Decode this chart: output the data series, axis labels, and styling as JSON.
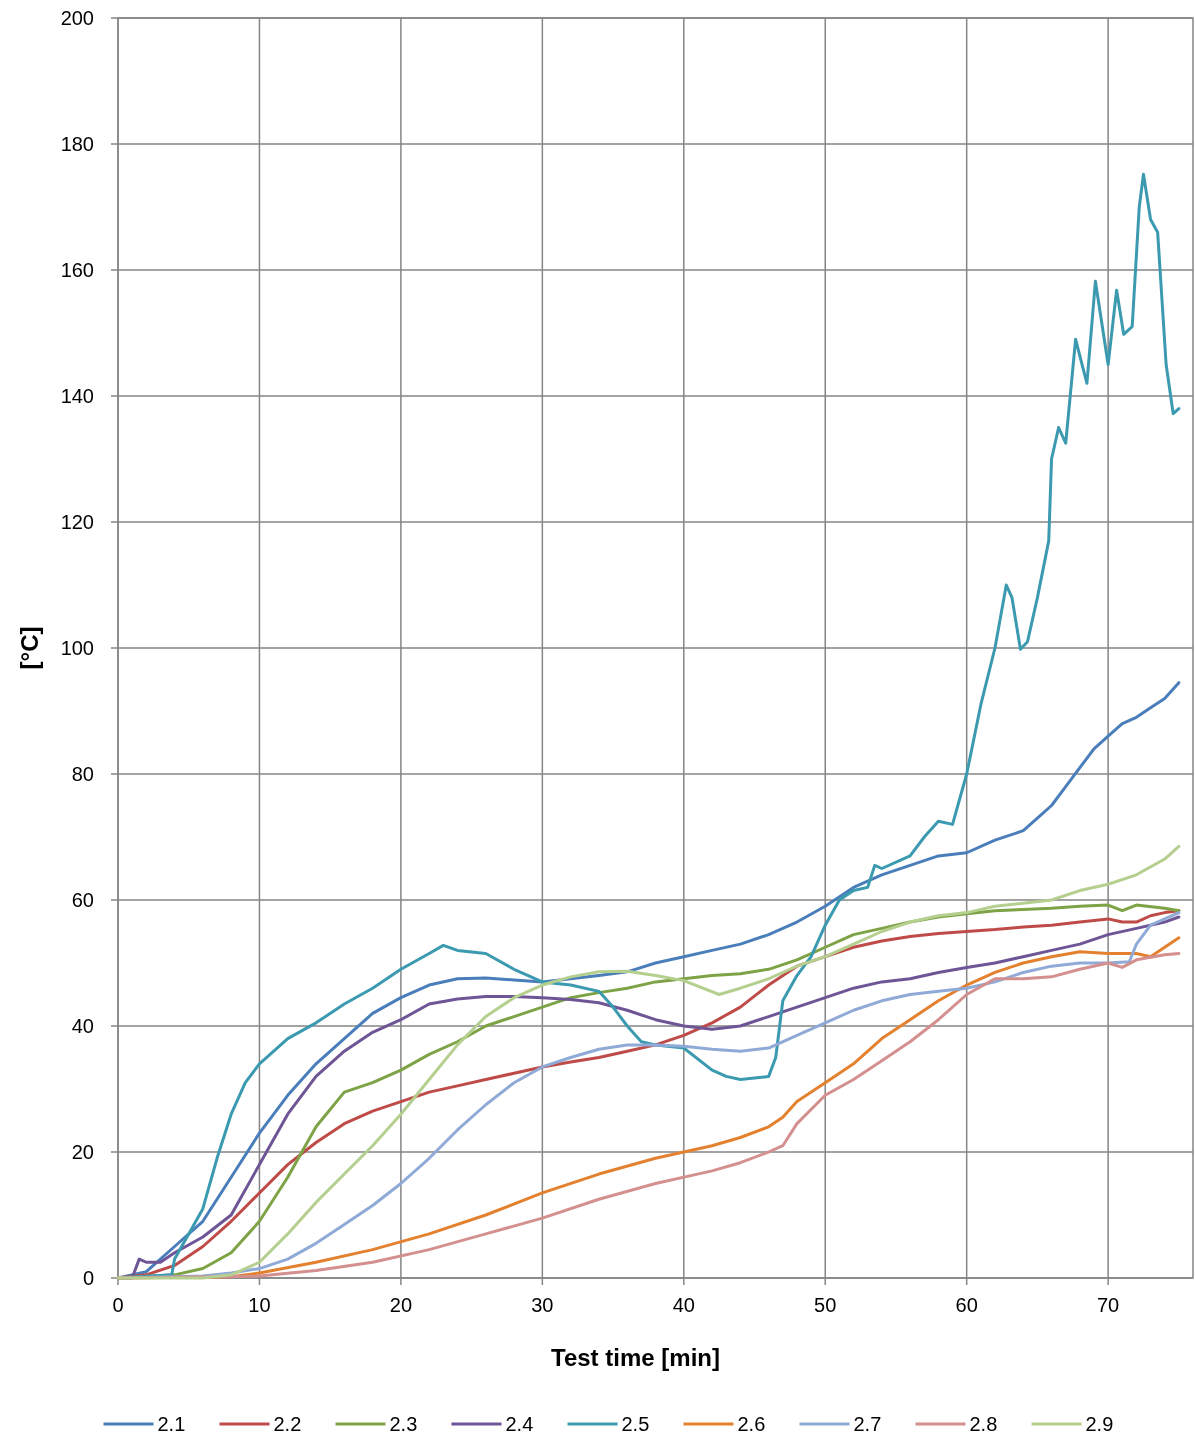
{
  "chart_data": {
    "type": "line",
    "xlabel": "Test time [min]",
    "ylabel": "[°C]",
    "xlim": [
      0,
      76
    ],
    "xticks": [
      0,
      10,
      20,
      30,
      40,
      50,
      60,
      70
    ],
    "ylim": [
      0,
      200
    ],
    "yticks": [
      0,
      20,
      40,
      60,
      80,
      100,
      120,
      140,
      160,
      180,
      200
    ],
    "grid": true,
    "legend": "bottom",
    "line_style": "solid",
    "series": [
      {
        "name": "2.1",
        "color": "#4a7ebb",
        "x": [
          0,
          2,
          4,
          6,
          8,
          10,
          12,
          14,
          16,
          18,
          20,
          22,
          24,
          26,
          28,
          30,
          32,
          34,
          36,
          38,
          40,
          42,
          44,
          46,
          48,
          50,
          52,
          54,
          56,
          58,
          60,
          62,
          64,
          65,
          66,
          67,
          68,
          69,
          70,
          71,
          72,
          73,
          74,
          75
        ],
        "values": [
          0,
          1,
          5,
          9,
          16,
          23,
          29,
          34,
          38,
          42,
          44.5,
          46.5,
          47.5,
          47.6,
          47.3,
          47,
          47.5,
          48,
          48.6,
          50,
          51,
          52,
          53,
          54.5,
          56.5,
          59,
          62,
          64,
          65.5,
          67,
          67.5,
          69.5,
          71,
          73,
          75,
          78,
          81,
          84,
          86,
          88,
          89,
          90.5,
          92,
          94.5
        ]
      },
      {
        "name": "2.2",
        "color": "#be4b48",
        "x": [
          0,
          2,
          4,
          6,
          8,
          10,
          12,
          14,
          16,
          18,
          20,
          22,
          24,
          26,
          28,
          30,
          32,
          34,
          36,
          38,
          40,
          42,
          44,
          46,
          48,
          50,
          52,
          54,
          56,
          58,
          60,
          62,
          64,
          66,
          68,
          70,
          71,
          72,
          73,
          74,
          75
        ],
        "values": [
          0,
          0.5,
          2,
          5,
          9,
          13.5,
          18,
          21.5,
          24.5,
          26.5,
          28,
          29.5,
          30.5,
          31.5,
          32.5,
          33.5,
          34.3,
          35,
          36,
          37,
          38.5,
          40.5,
          43,
          46.5,
          49.5,
          51,
          52.5,
          53.5,
          54.2,
          54.7,
          55,
          55.3,
          55.7,
          56,
          56.5,
          57,
          56.5,
          56.5,
          57.5,
          58,
          58.3
        ]
      },
      {
        "name": "2.3",
        "color": "#7ea346",
        "x": [
          0,
          4,
          6,
          8,
          10,
          12,
          14,
          16,
          18,
          20,
          22,
          24,
          26,
          28,
          30,
          32,
          34,
          36,
          38,
          40,
          42,
          44,
          46,
          48,
          50,
          52,
          54,
          56,
          58,
          60,
          62,
          64,
          66,
          68,
          70,
          71,
          72,
          74,
          75
        ],
        "values": [
          0,
          0.5,
          1.5,
          4,
          9,
          16,
          24,
          29.5,
          31,
          33,
          35.5,
          37.5,
          40,
          41.5,
          43,
          44.5,
          45.3,
          46,
          47,
          47.5,
          48,
          48.3,
          49,
          50.5,
          52.5,
          54.5,
          55.5,
          56.5,
          57.3,
          57.8,
          58.3,
          58.5,
          58.7,
          59,
          59.2,
          58.3,
          59.2,
          58.7,
          58.3
        ]
      },
      {
        "name": "2.4",
        "color": "#6e5596",
        "x": [
          0,
          1,
          1.5,
          2,
          3,
          4,
          6,
          8,
          10,
          12,
          14,
          16,
          18,
          20,
          22,
          24,
          26,
          28,
          30,
          32,
          34,
          36,
          38,
          40,
          42,
          44,
          46,
          48,
          50,
          52,
          54,
          56,
          58,
          60,
          62,
          64,
          66,
          68,
          70,
          72,
          74,
          75
        ],
        "values": [
          0,
          0,
          3,
          2.5,
          2.5,
          4,
          6.5,
          10,
          18,
          26,
          32,
          36,
          39,
          41,
          43.5,
          44.3,
          44.7,
          44.7,
          44.5,
          44.2,
          43.7,
          42.5,
          41,
          40,
          39.5,
          40,
          41.5,
          43,
          44.5,
          46,
          47,
          47.5,
          48.5,
          49.3,
          50,
          51,
          52,
          53,
          54.5,
          55.5,
          56.5,
          57.3
        ]
      },
      {
        "name": "2.5",
        "color": "#3b9ab0",
        "x": [
          0,
          3.8,
          4,
          5,
          6,
          7,
          8,
          9,
          10,
          12,
          14,
          16,
          18,
          20,
          22,
          23,
          24,
          26,
          28,
          30,
          32,
          34,
          35,
          36,
          37,
          38,
          40,
          42,
          43,
          44,
          46,
          46.5,
          47,
          48,
          49,
          50,
          51,
          52,
          53,
          53.5,
          54,
          56,
          57,
          58,
          59,
          60,
          61,
          62,
          62.8,
          63.2,
          63.8,
          64.3,
          65,
          65.8,
          66,
          66.5,
          67,
          67.7,
          68.5,
          69.1,
          70,
          70.6,
          71.1,
          71.7,
          72.2,
          72.5,
          73,
          73.5,
          74.1,
          74.6,
          75
        ],
        "values": [
          0,
          0.5,
          3,
          7,
          11,
          19,
          26,
          31,
          34,
          38,
          40.5,
          43.5,
          46,
          49,
          51.5,
          52.8,
          52,
          51.5,
          49,
          47,
          46.5,
          45.5,
          43,
          40,
          37.5,
          37,
          36.5,
          33,
          32,
          31.5,
          32,
          35,
          44,
          48,
          51,
          56,
          60,
          61.5,
          62,
          65.5,
          65,
          67,
          70,
          72.5,
          72,
          80,
          91,
          100,
          110,
          108,
          99.8,
          101,
          108,
          117,
          130,
          135,
          132.5,
          149,
          142,
          158.2,
          145,
          156.8,
          149.8,
          151,
          170,
          175.2,
          168,
          166,
          145,
          137.2,
          138
        ]
      },
      {
        "name": "2.6",
        "color": "#e3812f",
        "x": [
          0,
          8,
          10,
          14,
          18,
          22,
          26,
          30,
          34,
          38,
          40,
          42,
          44,
          46,
          47,
          48,
          50,
          52,
          54,
          56,
          58,
          60,
          62,
          64,
          66,
          68,
          70,
          72,
          73,
          74,
          75
        ],
        "values": [
          0,
          0.2,
          0.8,
          2.5,
          4.5,
          7,
          10,
          13.5,
          16.5,
          19,
          20,
          21,
          22.3,
          24,
          25.5,
          28,
          31,
          34,
          38,
          41,
          44,
          46.5,
          48.5,
          50,
          51,
          51.8,
          51.5,
          51.5,
          51,
          52.5,
          54
        ]
      },
      {
        "name": "2.7",
        "color": "#8faad6",
        "x": [
          0,
          6,
          8,
          10,
          12,
          14,
          16,
          18,
          20,
          22,
          24,
          26,
          28,
          30,
          32,
          34,
          36,
          38,
          40,
          42,
          44,
          46,
          48,
          50,
          52,
          54,
          56,
          58,
          60,
          62,
          64,
          66,
          68,
          70,
          71.5,
          72,
          73,
          75
        ],
        "values": [
          0,
          0.3,
          0.8,
          1.5,
          3,
          5.5,
          8.5,
          11.5,
          15,
          19,
          23.5,
          27.5,
          31,
          33.5,
          35,
          36.3,
          37,
          37,
          36.8,
          36.3,
          36,
          36.5,
          38.5,
          40.5,
          42.5,
          44,
          45,
          45.5,
          46,
          47,
          48.5,
          49.5,
          50,
          50,
          50.2,
          53,
          56,
          58
        ]
      },
      {
        "name": "2.8",
        "color": "#d48f8f",
        "x": [
          0,
          10,
          14,
          18,
          22,
          26,
          30,
          34,
          38,
          42,
          44,
          46,
          47,
          48,
          50,
          52,
          54,
          56,
          58,
          60,
          62,
          64,
          66,
          68,
          70,
          71,
          72,
          74,
          75
        ],
        "values": [
          0,
          0.3,
          1.2,
          2.5,
          4.5,
          7,
          9.5,
          12.5,
          15,
          17,
          18.3,
          20,
          21,
          24.5,
          29,
          31.5,
          34.5,
          37.5,
          41,
          45,
          47.5,
          47.5,
          47.8,
          49,
          50,
          49.3,
          50.5,
          51.3,
          51.5
        ]
      },
      {
        "name": "2.9",
        "color": "#b5cf8f",
        "x": [
          0,
          6,
          8,
          10,
          12,
          14,
          16,
          18,
          20,
          22,
          24,
          26,
          28,
          30,
          32,
          34,
          36,
          38,
          40,
          42.5,
          44,
          46,
          48,
          50,
          52,
          54,
          56,
          58,
          60,
          62,
          64,
          66,
          68,
          70,
          72,
          74,
          75
        ],
        "values": [
          0,
          0,
          0.5,
          2.5,
          7,
          12,
          16.5,
          21,
          26,
          31.5,
          37,
          41.5,
          44.5,
          46.5,
          47.8,
          48.6,
          48.7,
          48,
          47.2,
          45,
          46,
          47.5,
          49.5,
          51,
          53,
          55,
          56.5,
          57.5,
          58,
          59,
          59.5,
          60,
          61.5,
          62.5,
          64,
          66.5,
          68.5
        ]
      }
    ]
  }
}
